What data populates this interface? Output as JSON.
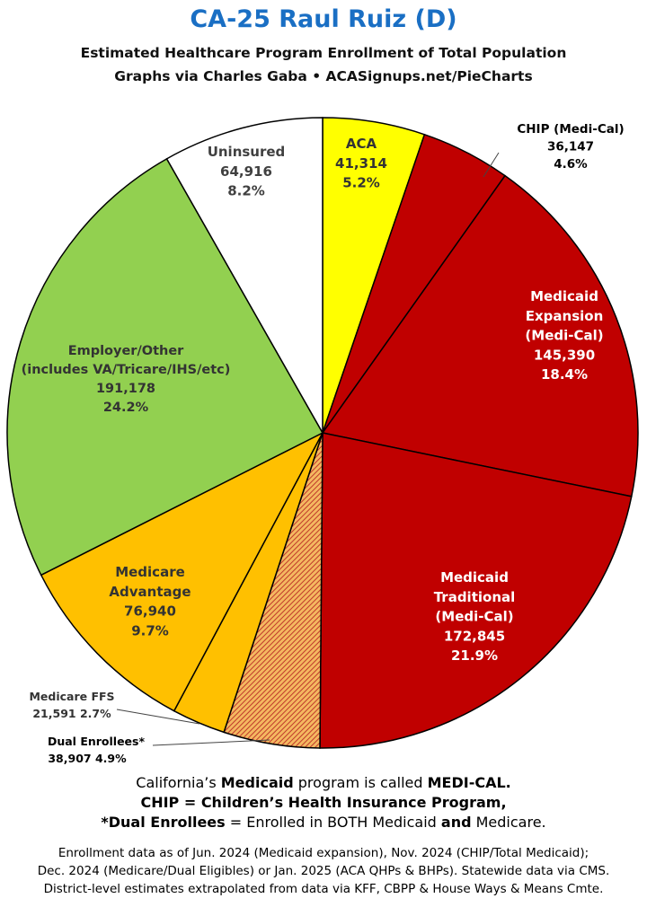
{
  "header": {
    "title": "CA-25 Raul Ruiz (D)",
    "subtitle1": "Estimated Healthcare Program Enrollment of Total Population",
    "subtitle2": "Graphs via Charles Gaba   •   ACASignups.net/PieCharts"
  },
  "chart_data": {
    "type": "pie",
    "start_angle_deg": 0,
    "direction": "clockwise",
    "slices": [
      {
        "name": "ACA",
        "value": 41314,
        "value_label": "41,314",
        "percent": "5.2%",
        "color": "#ffff00",
        "text_color": "#333333"
      },
      {
        "name": "CHIP (Medi-Cal)",
        "value": 36147,
        "value_label": "36,147",
        "percent": "4.6%",
        "color": "#c00000",
        "text_color": "#000000"
      },
      {
        "name": "Medicaid Expansion (Medi-Cal)",
        "value": 145390,
        "value_label": "145,390",
        "percent": "18.4%",
        "color": "#c00000",
        "text_color": "#ffffff"
      },
      {
        "name": "Medicaid Traditional (Medi-Cal)",
        "value": 172845,
        "value_label": "172,845",
        "percent": "21.9%",
        "color": "#c00000",
        "text_color": "#ffffff"
      },
      {
        "name": "Dual Enrollees*",
        "value": 38907,
        "value_label": "38,907",
        "percent": "4.9%",
        "color": "#f0a030",
        "pattern": "hatch",
        "text_color": "#000000"
      },
      {
        "name": "Medicare FFS",
        "value": 21591,
        "value_label": "21,591",
        "percent": "2.7%",
        "color": "#ffc000",
        "text_color": "#333333"
      },
      {
        "name": "Medicare Advantage",
        "value": 76940,
        "value_label": "76,940",
        "percent": "9.7%",
        "color": "#ffc000",
        "text_color": "#333333"
      },
      {
        "name": "Employer/Other (includes VA/Tricare/IHS/etc)",
        "value": 191178,
        "value_label": "191,178",
        "percent": "24.2%",
        "color": "#92d050",
        "text_color": "#333333"
      },
      {
        "name": "Uninsured",
        "value": 64916,
        "value_label": "64,916",
        "percent": "8.2%",
        "color": "#ffffff",
        "text_color": "#404040"
      }
    ]
  },
  "notes": {
    "line1_pre": "California’s ",
    "line1_b1": "Medicaid",
    "line1_mid": " program is called ",
    "line1_b2": "MEDI-CAL.",
    "line2": "CHIP = Children’s Health Insurance Program,",
    "line3_b1": "*Dual Enrollees",
    "line3_mid": " = Enrolled in BOTH Medicaid ",
    "line3_b2": "and",
    "line3_end": " Medicare."
  },
  "footer": {
    "line1": "Enrollment data as of Jun. 2024 (Medicaid expansion), Nov. 2024 (CHIP/Total Medicaid);",
    "line2": "Dec. 2024 (Medicare/Dual Eligibles) or Jan. 2025 (ACA QHPs & BHPs). Statewide data via CMS.",
    "line3": "District-level estimates extrapolated from data via KFF, CBPP & House Ways & Means Cmte."
  }
}
